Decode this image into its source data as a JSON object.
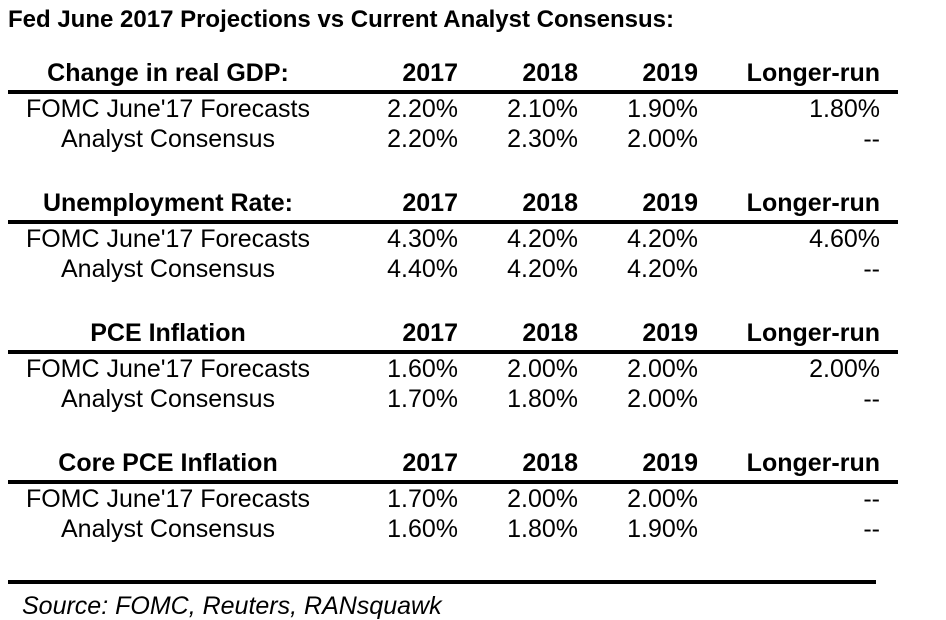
{
  "chart_data": {
    "type": "table",
    "title": "Fed June 2017 Projections vs Current Analyst Consensus:",
    "columns": [
      "2017",
      "2018",
      "2019",
      "Longer-run"
    ],
    "sections": [
      {
        "label": "Change in real GDP:",
        "rows": [
          {
            "label": "FOMC June'17 Forecasts",
            "values": [
              "2.20%",
              "2.10%",
              "1.90%",
              "1.80%"
            ]
          },
          {
            "label": "Analyst Consensus",
            "values": [
              "2.20%",
              "2.30%",
              "2.00%",
              "--"
            ]
          }
        ]
      },
      {
        "label": "Unemployment Rate:",
        "rows": [
          {
            "label": "FOMC June'17 Forecasts",
            "values": [
              "4.30%",
              "4.20%",
              "4.20%",
              "4.60%"
            ]
          },
          {
            "label": "Analyst Consensus",
            "values": [
              "4.40%",
              "4.20%",
              "4.20%",
              "--"
            ]
          }
        ]
      },
      {
        "label": "PCE Inflation",
        "rows": [
          {
            "label": "FOMC June'17 Forecasts",
            "values": [
              "1.60%",
              "2.00%",
              "2.00%",
              "2.00%"
            ]
          },
          {
            "label": "Analyst Consensus",
            "values": [
              "1.70%",
              "1.80%",
              "2.00%",
              "--"
            ]
          }
        ]
      },
      {
        "label": "Core PCE Inflation",
        "rows": [
          {
            "label": "FOMC June'17 Forecasts",
            "values": [
              "1.70%",
              "2.00%",
              "2.00%",
              "--"
            ]
          },
          {
            "label": "Analyst Consensus",
            "values": [
              "1.60%",
              "1.80%",
              "1.90%",
              "--"
            ]
          }
        ]
      }
    ],
    "source": "Source: FOMC, Reuters, RANsquawk",
    "layout": {
      "label_column_align": "center",
      "value_columns_align": "right",
      "header_rule": "thick-black",
      "source_rule": "thick-black"
    }
  },
  "colors": {
    "text": "#000000",
    "background": "#ffffff",
    "rule": "#000000"
  }
}
